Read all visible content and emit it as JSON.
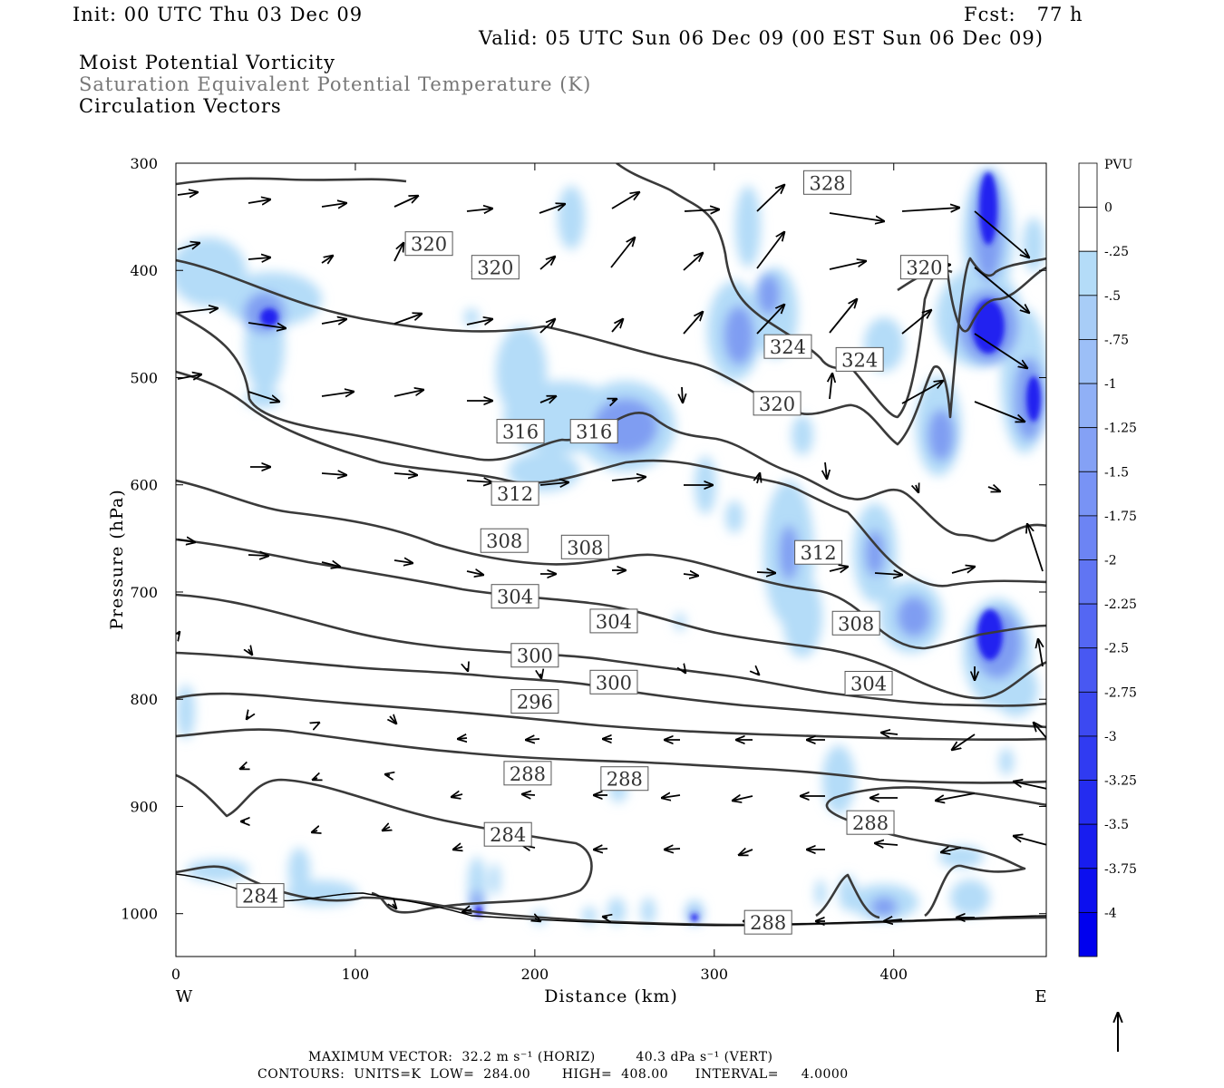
{
  "header": {
    "init": "Init: 00 UTC Thu 03 Dec 09",
    "fcst": "Fcst:   77 h",
    "valid": "Valid: 05 UTC Sun 06 Dec 09 (00 EST Sun 06 Dec 09)"
  },
  "fields": {
    "shaded": "Moist Potential Vorticity",
    "contour": "Saturation Equivalent Potential Temperature (K)",
    "vectors": "Circulation Vectors"
  },
  "footer": {
    "max_vector": "MAXIMUM VECTOR:  32.2 m s⁻¹ (HORIZ)         40.3 dPa s⁻¹ (VERT)",
    "contours": "CONTOURS:  UNITS=K  LOW=  284.00       HIGH=  408.00      INTERVAL=     4.0000"
  },
  "colors": {
    "contour": "#3a3a3a",
    "vector": "#000000",
    "pv_light": "#b4dcf8",
    "pv_dark": "#0000ee"
  },
  "chart_data": {
    "type": "contour",
    "xlabel": "Distance (km)",
    "ylabel": "Pressure (hPa)",
    "x_ticks": [
      0,
      100,
      200,
      300,
      400
    ],
    "y_ticks": [
      300,
      400,
      500,
      600,
      700,
      800,
      900,
      1000
    ],
    "xlim": [
      0,
      485
    ],
    "ylim": [
      1040,
      300
    ],
    "x_end_labels": {
      "left": "W",
      "right": "E"
    },
    "colorbar": {
      "unit": "PVU",
      "levels": [
        "0",
        "-.25",
        "-.5",
        "-.75",
        "-1",
        "-1.25",
        "-1.5",
        "-1.75",
        "-2",
        "-2.25",
        "-2.5",
        "-2.75",
        "-3",
        "-3.25",
        "-3.5",
        "-3.75",
        "-4"
      ]
    },
    "contour_labels": [
      {
        "value": "328",
        "x": 363,
        "p": 318
      },
      {
        "value": "320",
        "x": 141,
        "p": 375
      },
      {
        "value": "320",
        "x": 178,
        "p": 397
      },
      {
        "value": "320",
        "x": 417,
        "p": 397
      },
      {
        "value": "324",
        "x": 341,
        "p": 471
      },
      {
        "value": "324",
        "x": 381,
        "p": 483
      },
      {
        "value": "320",
        "x": 335,
        "p": 524
      },
      {
        "value": "316",
        "x": 192,
        "p": 550
      },
      {
        "value": "316",
        "x": 233,
        "p": 550
      },
      {
        "value": "312",
        "x": 189,
        "p": 608
      },
      {
        "value": "308",
        "x": 183,
        "p": 652
      },
      {
        "value": "308",
        "x": 228,
        "p": 658
      },
      {
        "value": "312",
        "x": 358,
        "p": 663
      },
      {
        "value": "304",
        "x": 189,
        "p": 704
      },
      {
        "value": "304",
        "x": 244,
        "p": 727
      },
      {
        "value": "308",
        "x": 379,
        "p": 729
      },
      {
        "value": "300",
        "x": 200,
        "p": 759
      },
      {
        "value": "300",
        "x": 244,
        "p": 784
      },
      {
        "value": "304",
        "x": 386,
        "p": 785
      },
      {
        "value": "296",
        "x": 200,
        "p": 802
      },
      {
        "value": "288",
        "x": 196,
        "p": 869
      },
      {
        "value": "288",
        "x": 250,
        "p": 874
      },
      {
        "value": "288",
        "x": 387,
        "p": 915
      },
      {
        "value": "284",
        "x": 185,
        "p": 926
      },
      {
        "value": "284",
        "x": 47,
        "p": 983
      },
      {
        "value": "288",
        "x": 330,
        "p": 1008
      }
    ]
  }
}
